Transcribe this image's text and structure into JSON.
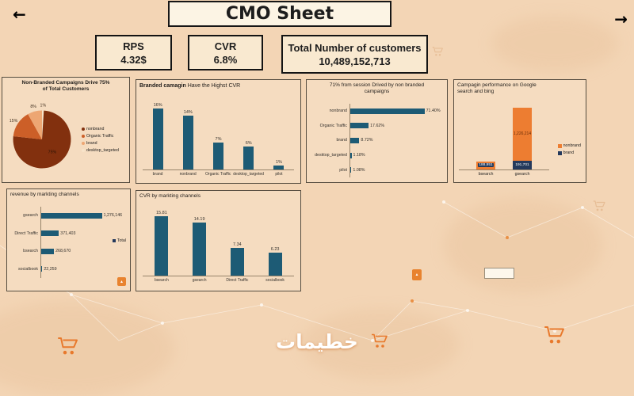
{
  "header": {
    "title": "CMO Sheet",
    "back_icon": "←",
    "forward_icon": "→"
  },
  "kpis": [
    {
      "label": "RPS",
      "value": "4.32$"
    },
    {
      "label": "CVR",
      "value": "6.8%"
    },
    {
      "label": "Total Number of customers",
      "value": "10,489,152,713"
    }
  ],
  "watermark": "خطيمات",
  "icons": {
    "image_placeholder": "▲"
  },
  "colors": {
    "background": "#f3d5b5",
    "panel": "#f5dcc0",
    "bar": "#1d5b75",
    "orange": "#ed7d31",
    "navy": "#24395c"
  },
  "chart_data": [
    {
      "id": "pie-customers",
      "type": "pie",
      "title": "Non-Branded Campaigns Drive 75% of Total Customers",
      "slices": [
        {
          "label": "desktop_targeted",
          "value": 1,
          "display": "1%",
          "color": "#f7e4ca"
        },
        {
          "label": "nonbrand",
          "value": 75,
          "display": "75%",
          "color": "#82300e"
        },
        {
          "label": "Organic Traffic",
          "value": 15,
          "display": "15%",
          "color": "#cc5f28"
        },
        {
          "label": "brand",
          "value": 8,
          "display": "8%",
          "color": "#eda673"
        }
      ],
      "legend_order": [
        "nonbrand",
        "Organic Traffic",
        "brand",
        "desktop_targeted"
      ]
    },
    {
      "id": "branded-cvr",
      "type": "bar",
      "title_bold": "Branded camagin",
      "title_rest": " Have the Highst CVR",
      "categories": [
        "brand",
        "nonbrand",
        "Organic Traffic",
        "desktop_targeted",
        "pilot"
      ],
      "values": [
        16,
        14,
        7,
        6,
        1
      ],
      "data_labels": [
        "16%",
        "14%",
        "7%",
        "6%",
        "1%"
      ],
      "ymax": 18
    },
    {
      "id": "session-share",
      "type": "hbar",
      "title": "71% from session Drived by non branded campaigns",
      "categories": [
        "nonbrand",
        "Organic Traffic",
        "brand",
        "desktop_targeted",
        "pilot"
      ],
      "values": [
        71.4,
        17.62,
        8.72,
        1.18,
        1.08
      ],
      "data_labels": [
        "71.40%",
        "17.62%",
        "8.72%",
        "1.18%",
        "1.08%"
      ],
      "xmax": 90
    },
    {
      "id": "campaign-performance",
      "type": "stacked",
      "title": "Campagin performance on Google search and bing",
      "categories": [
        "bsearch",
        "gsearch"
      ],
      "series": [
        {
          "name": "nonbrand",
          "color": "#ed7d31",
          "label_color": "#6b2f0a",
          "values": [
            188951,
            1226214
          ],
          "labels": [
            "188,951",
            "1,226,214"
          ]
        },
        {
          "name": "brand",
          "color": "#24395c",
          "label_color": "#ffffff",
          "values": [
            0,
            191701
          ],
          "labels": [
            "",
            "191,701"
          ]
        }
      ],
      "ymax": 1500000
    },
    {
      "id": "revenue-channels",
      "type": "hbar",
      "title": "revenue by markting  channels",
      "categories": [
        "gsearch",
        "Direct Traffic",
        "bsearch",
        "socialbook"
      ],
      "values": [
        1276146,
        371403,
        268670,
        22259
      ],
      "data_labels": [
        "1,276,146",
        "371,403",
        "268,670",
        "22,259"
      ],
      "xmax": 1800000,
      "legend_label": "Total"
    },
    {
      "id": "cvr-channels",
      "type": "bar",
      "title": "CVR by markting channels",
      "categories": [
        "bsearch",
        "gsearch",
        "Direct Traffic",
        "socialbook"
      ],
      "values": [
        15.81,
        14.19,
        7.34,
        6.23
      ],
      "data_labels": [
        "15.81",
        "14.19",
        "7.34",
        "6.23"
      ],
      "ymax": 18
    }
  ]
}
